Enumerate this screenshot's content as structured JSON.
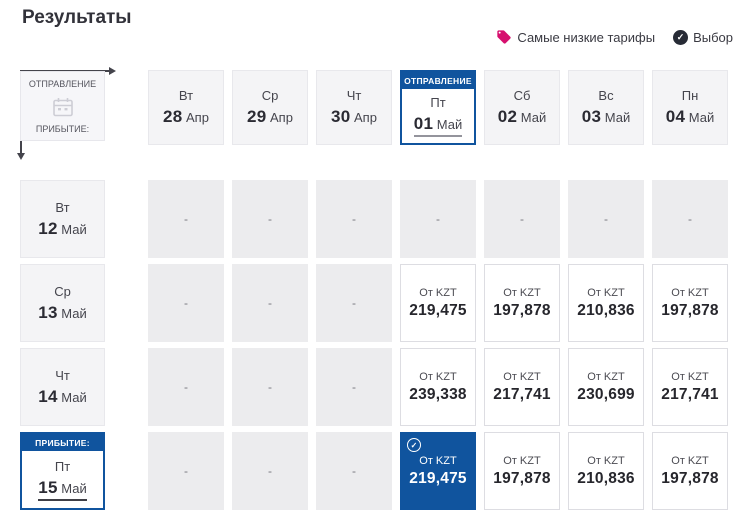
{
  "header": {
    "title": "Результаты"
  },
  "legend": {
    "items": [
      {
        "icon": "tag-icon",
        "label": "Самые низкие тарифы"
      },
      {
        "icon": "check-circle-icon",
        "label": "Выбор"
      }
    ]
  },
  "matrix": {
    "corner": {
      "departure_label": "ОТПРАВЛЕНИЕ",
      "arrival_label": "ПРИБЫТИЕ:",
      "icon": "calendar-icon"
    },
    "price_prefix": "От KZT",
    "empty_cell_text": "-",
    "columns": [
      {
        "weekday": "Вт",
        "day": "28",
        "month": "Апр",
        "selected": false
      },
      {
        "weekday": "Ср",
        "day": "29",
        "month": "Апр",
        "selected": false
      },
      {
        "weekday": "Чт",
        "day": "30",
        "month": "Апр",
        "selected": false
      },
      {
        "weekday": "Пт",
        "day": "01",
        "month": "Май",
        "selected": true,
        "badge": "ОТПРАВЛЕНИЕ"
      },
      {
        "weekday": "Сб",
        "day": "02",
        "month": "Май",
        "selected": false
      },
      {
        "weekday": "Вс",
        "day": "03",
        "month": "Май",
        "selected": false
      },
      {
        "weekday": "Пн",
        "day": "04",
        "month": "Май",
        "selected": false
      }
    ],
    "rows": [
      {
        "weekday": "Вт",
        "day": "12",
        "month": "Май",
        "selected": false,
        "cells": [
          null,
          null,
          null,
          null,
          null,
          null,
          null
        ]
      },
      {
        "weekday": "Ср",
        "day": "13",
        "month": "Май",
        "selected": false,
        "cells": [
          null,
          null,
          null,
          "219,475",
          "197,878",
          "210,836",
          "197,878"
        ]
      },
      {
        "weekday": "Чт",
        "day": "14",
        "month": "Май",
        "selected": false,
        "cells": [
          null,
          null,
          null,
          "239,338",
          "217,741",
          "230,699",
          "217,741"
        ]
      },
      {
        "weekday": "Пт",
        "day": "15",
        "month": "Май",
        "selected": true,
        "badge": "ПРИБЫТИЕ:",
        "cells": [
          null,
          null,
          null,
          {
            "amount": "219,475",
            "selected": true
          },
          "197,878",
          "210,836",
          "197,878"
        ]
      }
    ]
  },
  "colors": {
    "accent_blue": "#10549e",
    "tag_pink": "#d60f6e",
    "legend_dark": "#272b36",
    "empty_cell_gray": "#ececee"
  }
}
